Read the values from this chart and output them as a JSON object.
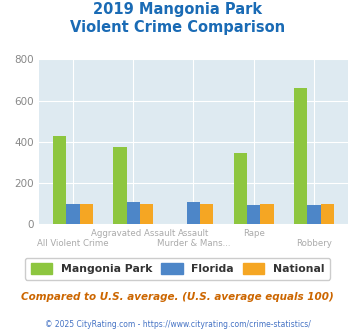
{
  "title_line1": "2019 Mangonia Park",
  "title_line2": "Violent Crime Comparison",
  "mangonia_values": [
    430,
    375,
    0,
    348,
    663
  ],
  "florida_values": [
    100,
    107,
    107,
    95,
    95
  ],
  "national_values": [
    100,
    100,
    100,
    100,
    100
  ],
  "color_mangonia": "#8dc63f",
  "color_florida": "#4d86c8",
  "color_national": "#f5a623",
  "ylim": [
    0,
    800
  ],
  "yticks": [
    0,
    200,
    400,
    600,
    800
  ],
  "title_color": "#1a6bb5",
  "tick_label_color": "#888888",
  "xlabel_color": "#aaaaaa",
  "background_color": "#deeaf1",
  "footer_text": "Compared to U.S. average. (U.S. average equals 100)",
  "copyright_text": "© 2025 CityRating.com - https://www.cityrating.com/crime-statistics/",
  "legend_labels": [
    "Mangonia Park",
    "Florida",
    "National"
  ],
  "bar_width": 0.22,
  "grid_color": "#ffffff",
  "top_labels": [
    "",
    "Aggravated Assault",
    "Assault",
    "Rape",
    ""
  ],
  "bot_labels": [
    "All Violent Crime",
    "",
    "Murder & Mans...",
    "",
    "Robbery"
  ]
}
